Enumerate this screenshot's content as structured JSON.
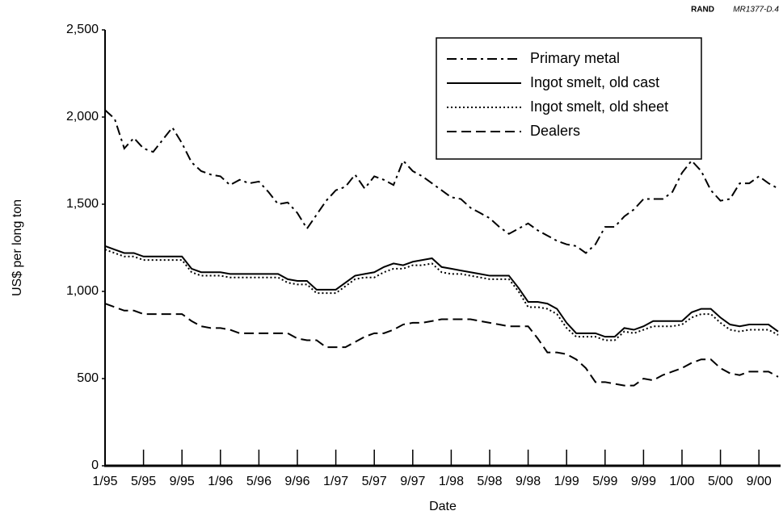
{
  "chart_data": {
    "type": "line",
    "source": "RAND",
    "figure_id": "MR1377-D.4",
    "xlabel": "Date",
    "ylabel": "US$ per long ton",
    "categories": [
      "1/95",
      null,
      null,
      null,
      "5/95",
      null,
      null,
      null,
      "9/95",
      null,
      null,
      null,
      "1/96",
      null,
      null,
      null,
      "5/96",
      null,
      null,
      null,
      "9/96",
      null,
      null,
      null,
      "1/97",
      null,
      null,
      null,
      "5/97",
      null,
      null,
      null,
      "9/97",
      null,
      null,
      null,
      "1/98",
      null,
      null,
      null,
      "5/98",
      null,
      null,
      null,
      "9/98",
      null,
      null,
      null,
      "1/99",
      null,
      null,
      null,
      "5/99",
      null,
      null,
      null,
      "9/99",
      null,
      null,
      null,
      "1/00",
      null,
      null,
      null,
      "5/00",
      null,
      null,
      null,
      "9/00",
      null,
      null
    ],
    "ylim": [
      0,
      2500
    ],
    "yticks": [
      0,
      {
        "value": 500,
        "label": "500"
      },
      {
        "value": 1000,
        "label": "1,000"
      },
      {
        "value": 1500,
        "label": "1,500"
      },
      {
        "value": 2000,
        "label": "2,000"
      },
      {
        "value": 2500,
        "label": "2,500"
      }
    ],
    "legend": "upper right",
    "series": [
      {
        "name": "Primary metal",
        "color": "#000000",
        "dash": "dashdot",
        "values": [
          2040,
          1990,
          1820,
          1880,
          1820,
          1800,
          1870,
          1940,
          1850,
          1740,
          1690,
          1670,
          1660,
          1610,
          1640,
          1620,
          1630,
          1570,
          1500,
          1510,
          1450,
          1360,
          1440,
          1520,
          1580,
          1600,
          1670,
          1590,
          1660,
          1640,
          1610,
          1750,
          1690,
          1660,
          1620,
          1580,
          1540,
          1530,
          1480,
          1450,
          1420,
          1370,
          1330,
          1360,
          1390,
          1350,
          1320,
          1290,
          1270,
          1260,
          1220,
          1270,
          1370,
          1370,
          1430,
          1470,
          1530,
          1530,
          1530,
          1570,
          1680,
          1750,
          1690,
          1580,
          1520,
          1530,
          1620,
          1620,
          1660,
          1620,
          1590
        ]
      },
      {
        "name": "Ingot smelt, old cast",
        "color": "#000000",
        "dash": "solid",
        "values": [
          1260,
          1240,
          1220,
          1220,
          1200,
          1200,
          1200,
          1200,
          1200,
          1130,
          1110,
          1110,
          1110,
          1100,
          1100,
          1100,
          1100,
          1100,
          1100,
          1070,
          1060,
          1060,
          1010,
          1010,
          1010,
          1050,
          1090,
          1100,
          1110,
          1140,
          1160,
          1150,
          1170,
          1180,
          1190,
          1140,
          1130,
          1120,
          1110,
          1100,
          1090,
          1090,
          1090,
          1020,
          940,
          940,
          930,
          900,
          820,
          760,
          760,
          760,
          740,
          740,
          790,
          780,
          800,
          830,
          830,
          830,
          830,
          880,
          900,
          900,
          850,
          810,
          800,
          810,
          810,
          810,
          770
        ]
      },
      {
        "name": "Ingot smelt, old sheet",
        "color": "#000000",
        "dash": "dotted",
        "values": [
          1240,
          1220,
          1200,
          1200,
          1180,
          1180,
          1180,
          1180,
          1180,
          1110,
          1090,
          1090,
          1090,
          1080,
          1080,
          1080,
          1080,
          1080,
          1080,
          1050,
          1040,
          1040,
          990,
          990,
          990,
          1030,
          1070,
          1080,
          1080,
          1110,
          1130,
          1130,
          1150,
          1150,
          1160,
          1110,
          1100,
          1100,
          1090,
          1080,
          1070,
          1070,
          1070,
          1000,
          910,
          910,
          900,
          870,
          790,
          740,
          740,
          740,
          720,
          720,
          770,
          760,
          780,
          800,
          800,
          800,
          810,
          850,
          870,
          870,
          820,
          780,
          770,
          780,
          780,
          780,
          750
        ]
      },
      {
        "name": "Dealers",
        "color": "#000000",
        "dash": "dashed",
        "values": [
          930,
          910,
          890,
          890,
          870,
          870,
          870,
          870,
          870,
          830,
          800,
          790,
          790,
          780,
          760,
          760,
          760,
          760,
          760,
          760,
          730,
          720,
          720,
          680,
          680,
          680,
          710,
          740,
          760,
          760,
          780,
          810,
          820,
          820,
          830,
          840,
          840,
          840,
          840,
          830,
          820,
          810,
          800,
          800,
          800,
          730,
          650,
          650,
          640,
          610,
          560,
          480,
          480,
          470,
          460,
          460,
          500,
          490,
          520,
          540,
          560,
          590,
          610,
          610,
          560,
          530,
          520,
          540,
          540,
          540,
          510
        ]
      }
    ]
  }
}
